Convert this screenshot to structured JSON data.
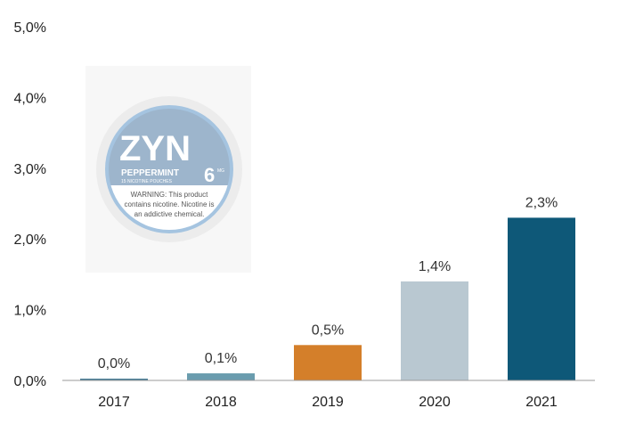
{
  "chart_data": {
    "type": "bar",
    "categories": [
      "2017",
      "2018",
      "2019",
      "2020",
      "2021"
    ],
    "values": [
      0.0,
      0.1,
      0.5,
      1.4,
      2.3
    ],
    "data_labels": [
      "0,0%",
      "0,1%",
      "0,5%",
      "1,4%",
      "2,3%"
    ],
    "bar_colors": [
      "#4a7f98",
      "#6a9cae",
      "#d47f2a",
      "#b9c8d1",
      "#0e5878"
    ],
    "ylim": [
      0,
      5
    ],
    "yticks": [
      0,
      1,
      2,
      3,
      4,
      5
    ],
    "ytick_labels": [
      "0,0%",
      "1,0%",
      "2,0%",
      "3,0%",
      "4,0%",
      "5,0%"
    ],
    "grid": false,
    "title": "",
    "xlabel": "",
    "ylabel": ""
  },
  "product_image": {
    "brand": "ZYN",
    "flavor": "PEPPERMINT",
    "strength": "6",
    "strength_unit": "MG",
    "subtitle": "15 NICOTINE POUCHES",
    "warning_lines": [
      "WARNING: This product",
      "contains nicotine. Nicotine is",
      "an addictive chemical."
    ]
  },
  "colors": {
    "axis": "#999999",
    "lid_outer": "#ececec",
    "lid_ring": "#a5c4e0",
    "lid_top": "#9db5cc",
    "lid_bottom": "#ffffff"
  }
}
